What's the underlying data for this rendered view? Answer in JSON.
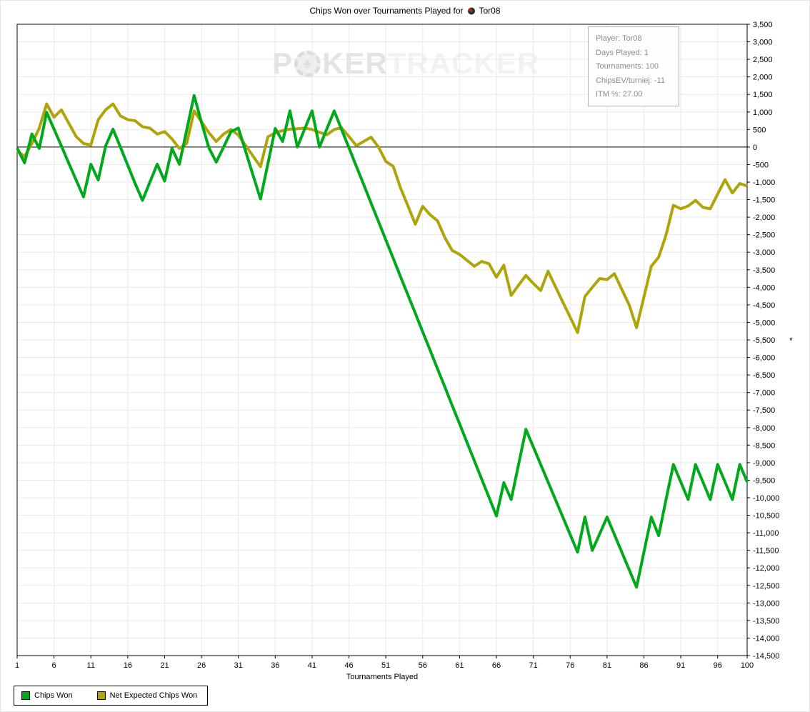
{
  "title": {
    "main": "Chips Won over Tournaments Played for",
    "player": "Tor08"
  },
  "watermark": {
    "p1": "P",
    "chip_glyph": "♠",
    "p2": "KER",
    "p3": "TRACKER"
  },
  "info_box": {
    "lines": [
      "Player: Tor08",
      "Days Played: 1",
      "Tournaments: 100",
      "ChipsEV/turniej: -11",
      "ITM %: 27.00"
    ]
  },
  "footnote_marker": "*",
  "colors": {
    "chips_won": "#00a81b",
    "net_expected": "#afa40a",
    "grid": "#e9e9e9",
    "axis": "#000000",
    "info_text": "#8c8c8c"
  },
  "chart_data": {
    "type": "line",
    "title": "Chips Won over Tournaments Played for Tor08",
    "xlabel": "Tournaments Played",
    "ylabel": "",
    "xlim": [
      1,
      100
    ],
    "ylim": [
      -14500,
      3500
    ],
    "y_tick_step": 500,
    "x_ticks": [
      1,
      6,
      11,
      16,
      21,
      26,
      31,
      36,
      41,
      46,
      51,
      56,
      61,
      66,
      71,
      76,
      81,
      86,
      91,
      96,
      100
    ],
    "grid": true,
    "legend_position": "bottom-left",
    "series": [
      {
        "name": "Chips Won",
        "color": "#00a81b",
        "values": [
          -30,
          -450,
          370,
          -40,
          990,
          510,
          30,
          -460,
          -940,
          -1420,
          -490,
          -940,
          30,
          510,
          0,
          -520,
          -1040,
          -1520,
          -1000,
          -490,
          -970,
          -40,
          -490,
          490,
          1470,
          700,
          -20,
          -430,
          0,
          440,
          540,
          -130,
          -810,
          -1480,
          -480,
          530,
          160,
          1030,
          0,
          520,
          1030,
          0,
          520,
          1030,
          500,
          -20,
          -550,
          -1070,
          -1600,
          -2120,
          -2650,
          -3170,
          -3700,
          -4220,
          -4740,
          -5270,
          -5790,
          -6320,
          -6840,
          -7370,
          -7890,
          -8420,
          -8940,
          -9470,
          -9990,
          -10520,
          -9570,
          -10050,
          -9050,
          -8050,
          -8550,
          -9050,
          -9550,
          -10050,
          -10550,
          -11050,
          -11550,
          -10550,
          -11500,
          -11030,
          -10550,
          -11050,
          -11550,
          -12050,
          -12550,
          -11550,
          -10550,
          -11080,
          -10050,
          -9050,
          -9550,
          -10050,
          -9050,
          -9550,
          -10050,
          -9050,
          -9550,
          -10050,
          -9050,
          -9550
        ]
      },
      {
        "name": "Net Expected Chips Won",
        "color": "#afa40a",
        "values": [
          -110,
          -270,
          100,
          540,
          1230,
          850,
          1060,
          680,
          300,
          100,
          60,
          780,
          1060,
          1230,
          890,
          780,
          750,
          580,
          540,
          370,
          440,
          230,
          -40,
          100,
          1030,
          720,
          410,
          160,
          370,
          500,
          340,
          40,
          -260,
          -560,
          290,
          400,
          470,
          510,
          520,
          540,
          500,
          420,
          350,
          500,
          550,
          300,
          40,
          160,
          280,
          0,
          -410,
          -550,
          -1170,
          -1680,
          -2200,
          -1690,
          -1930,
          -2100,
          -2580,
          -2950,
          -3060,
          -3230,
          -3400,
          -3260,
          -3330,
          -3710,
          -3370,
          -4230,
          -3940,
          -3660,
          -3890,
          -4090,
          -3540,
          -3980,
          -4420,
          -4850,
          -5290,
          -4260,
          -4000,
          -3750,
          -3780,
          -3610,
          -4060,
          -4500,
          -5150,
          -4280,
          -3400,
          -3140,
          -2510,
          -1660,
          -1760,
          -1680,
          -1520,
          -1720,
          -1760,
          -1340,
          -930,
          -1310,
          -1040,
          -1110
        ]
      }
    ]
  }
}
